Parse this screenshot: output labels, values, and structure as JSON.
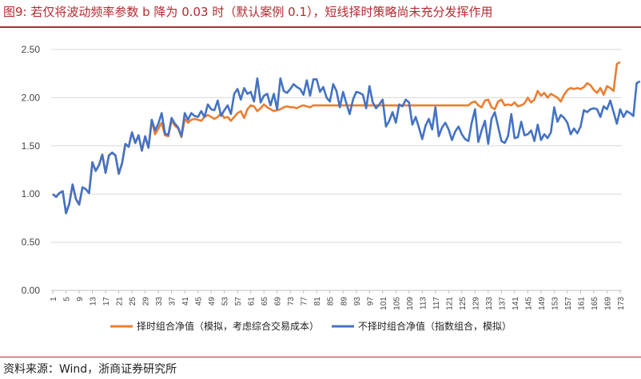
{
  "figure": {
    "title": "图9:   若仅将波动频率参数 b 降为 0.03 时（默认案例 0.1），短线择时策略尚未充分发挥作用",
    "source": "资料来源：Wind，浙商证券研究所"
  },
  "colors": {
    "orange": "#ED7D31",
    "blue": "#4472C4",
    "title_red": "#b5292f"
  },
  "chart_data": {
    "type": "line",
    "ylim": [
      0,
      2.5
    ],
    "yticks": [
      "0.00",
      "0.50",
      "1.00",
      "1.50",
      "2.00",
      "2.50"
    ],
    "x_ticks": [
      "1",
      "5",
      "9",
      "13",
      "17",
      "21",
      "25",
      "29",
      "33",
      "37",
      "41",
      "45",
      "49",
      "53",
      "57",
      "61",
      "65",
      "69",
      "73",
      "77",
      "81",
      "85",
      "89",
      "93",
      "97",
      "101",
      "105",
      "109",
      "113",
      "117",
      "121",
      "125",
      "129",
      "133",
      "137",
      "141",
      "145",
      "149",
      "153",
      "157",
      "161",
      "165",
      "169",
      "173"
    ],
    "grid": "horizontal",
    "legend_position": "bottom",
    "series": [
      {
        "name": "择时组合净值（模拟，考虑综合交易成本）",
        "color": "#ED7D31",
        "values": [
          1.0,
          0.97,
          1.01,
          1.03,
          0.8,
          0.9,
          1.1,
          0.95,
          0.89,
          1.07,
          1.05,
          1.01,
          1.33,
          1.24,
          1.3,
          1.41,
          1.22,
          1.4,
          1.43,
          1.4,
          1.21,
          1.32,
          1.52,
          1.49,
          1.64,
          1.53,
          1.61,
          1.45,
          1.6,
          1.48,
          1.77,
          1.62,
          1.68,
          1.74,
          1.61,
          1.6,
          1.76,
          1.71,
          1.68,
          1.59,
          1.78,
          1.74,
          1.77,
          1.78,
          1.77,
          1.76,
          1.8,
          1.82,
          1.8,
          1.78,
          1.8,
          1.84,
          1.79,
          1.8,
          1.76,
          1.8,
          1.84,
          1.86,
          1.79,
          1.88,
          1.92,
          1.91,
          1.86,
          1.89,
          1.93,
          1.9,
          1.88,
          1.86,
          1.87,
          1.88,
          1.9,
          1.91,
          1.9,
          1.9,
          1.89,
          1.91,
          1.92,
          1.91,
          1.9,
          1.92,
          1.92,
          1.92,
          1.92,
          1.92,
          1.92,
          1.92,
          1.92,
          1.92,
          1.92,
          1.92,
          1.92,
          1.92,
          1.92,
          1.92,
          1.92,
          1.92,
          1.92,
          1.92,
          1.92,
          1.92,
          1.92,
          1.92,
          1.92,
          1.92,
          1.92,
          1.92,
          1.92,
          1.92,
          1.92,
          1.92,
          1.92,
          1.92,
          1.92,
          1.92,
          1.92,
          1.92,
          1.92,
          1.92,
          1.92,
          1.92,
          1.92,
          1.92,
          1.92,
          1.92,
          1.92,
          1.92,
          1.92,
          1.95,
          1.96,
          1.92,
          1.9,
          1.97,
          1.98,
          1.9,
          1.88,
          1.96,
          1.98,
          1.92,
          1.93,
          1.92,
          1.95,
          1.91,
          1.92,
          1.94,
          2.0,
          1.95,
          1.98,
          2.07,
          2.02,
          2.05,
          2.0,
          2.04,
          2.02,
          2.0,
          1.96,
          2.03,
          2.08,
          2.1,
          2.09,
          2.1,
          2.09,
          2.11,
          2.15,
          2.13,
          2.08,
          2.05,
          2.1,
          2.03,
          2.12,
          2.1,
          2.07,
          2.35,
          2.37
        ]
      },
      {
        "name": "不择时组合净值（指数组合，模拟）",
        "color": "#4472C4",
        "values": [
          1.0,
          0.97,
          1.01,
          1.03,
          0.8,
          0.9,
          1.1,
          0.95,
          0.89,
          1.07,
          1.05,
          1.01,
          1.33,
          1.24,
          1.3,
          1.41,
          1.22,
          1.4,
          1.43,
          1.4,
          1.21,
          1.32,
          1.52,
          1.49,
          1.64,
          1.53,
          1.61,
          1.45,
          1.6,
          1.48,
          1.77,
          1.66,
          1.73,
          1.84,
          1.63,
          1.61,
          1.79,
          1.73,
          1.69,
          1.6,
          1.84,
          1.77,
          1.84,
          1.81,
          1.8,
          1.86,
          1.8,
          1.93,
          1.88,
          1.87,
          1.97,
          1.81,
          1.87,
          1.92,
          1.83,
          2.04,
          2.09,
          1.98,
          2.1,
          2.04,
          2.06,
          1.96,
          2.2,
          1.95,
          2.02,
          2.04,
          1.92,
          2.04,
          1.88,
          2.2,
          2.07,
          2.05,
          2.09,
          2.14,
          2.11,
          2.09,
          2.03,
          2.18,
          2.02,
          2.19,
          2.19,
          2.06,
          2.11,
          2.0,
          1.96,
          2.14,
          2.07,
          1.9,
          2.06,
          1.94,
          1.83,
          1.98,
          2.06,
          2.05,
          2.03,
          1.89,
          2.12,
          1.95,
          1.89,
          1.93,
          1.98,
          1.7,
          1.76,
          1.85,
          1.74,
          1.93,
          1.91,
          1.98,
          1.95,
          1.72,
          1.8,
          1.69,
          1.57,
          1.71,
          1.78,
          1.67,
          1.9,
          1.6,
          1.69,
          1.74,
          1.67,
          1.56,
          1.65,
          1.7,
          1.62,
          1.57,
          1.55,
          1.74,
          1.88,
          1.54,
          1.66,
          1.76,
          1.52,
          1.78,
          1.85,
          1.7,
          1.55,
          1.53,
          1.6,
          1.83,
          1.58,
          1.59,
          1.75,
          1.61,
          1.62,
          1.66,
          1.55,
          1.72,
          1.56,
          1.62,
          1.58,
          1.64,
          1.9,
          1.75,
          1.82,
          1.79,
          1.74,
          1.62,
          1.68,
          1.63,
          1.7,
          1.87,
          1.85,
          1.88,
          1.89,
          1.88,
          1.8,
          1.91,
          1.88,
          1.97,
          1.85,
          1.73,
          1.88,
          1.8,
          1.86,
          1.84,
          1.81,
          2.15,
          2.17
        ]
      }
    ]
  }
}
